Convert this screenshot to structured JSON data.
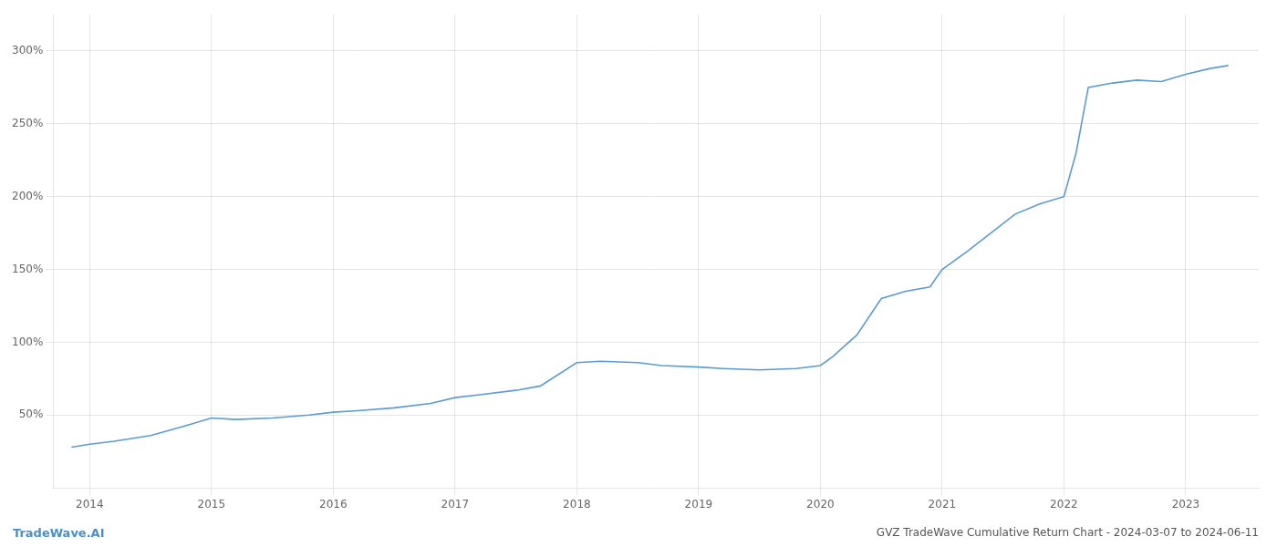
{
  "chart_data": {
    "type": "line",
    "title": "GVZ TradeWave Cumulative Return Chart - 2024-03-07 to 2024-06-11",
    "annotations": [
      "TradeWave.AI"
    ],
    "x": [
      2013.85,
      2014.0,
      2014.2,
      2014.5,
      2014.8,
      2015.0,
      2015.2,
      2015.5,
      2015.8,
      2016.0,
      2016.2,
      2016.5,
      2016.8,
      2017.0,
      2017.2,
      2017.5,
      2017.7,
      2018.0,
      2018.2,
      2018.5,
      2018.7,
      2019.0,
      2019.2,
      2019.5,
      2019.8,
      2020.0,
      2020.1,
      2020.3,
      2020.5,
      2020.7,
      2020.9,
      2021.0,
      2021.2,
      2021.4,
      2021.6,
      2021.8,
      2022.0,
      2022.1,
      2022.2,
      2022.4,
      2022.6,
      2022.8,
      2023.0,
      2023.2,
      2023.35
    ],
    "values": [
      28,
      30,
      32,
      36,
      43,
      48,
      47,
      48,
      50,
      52,
      53,
      55,
      58,
      62,
      64,
      67,
      70,
      86,
      87,
      86,
      84,
      83,
      82,
      81,
      82,
      84,
      90,
      105,
      130,
      135,
      138,
      150,
      162,
      175,
      188,
      195,
      200,
      230,
      275,
      278,
      280,
      279,
      284,
      288,
      290
    ],
    "color": "#5b9bd5",
    "xlim": [
      2013.7,
      2023.6
    ],
    "xticks": [
      2014,
      2015,
      2016,
      2017,
      2018,
      2019,
      2020,
      2021,
      2022,
      2023
    ],
    "ylim": [
      0,
      325
    ],
    "yticks": [
      {
        "value": 50,
        "label": "50%"
      },
      {
        "value": 100,
        "label": "100%"
      },
      {
        "value": 150,
        "label": "150%"
      },
      {
        "value": 200,
        "label": "200%"
      },
      {
        "value": 250,
        "label": "250%"
      },
      {
        "value": 300,
        "label": "300%"
      }
    ],
    "grid": true
  }
}
